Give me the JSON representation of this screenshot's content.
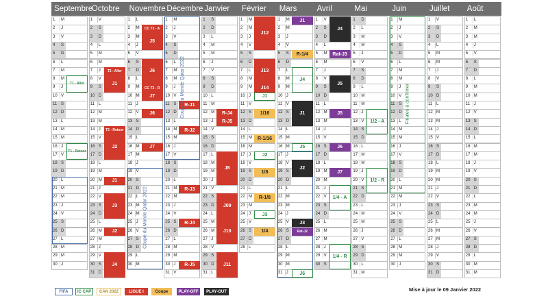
{
  "months": [
    {
      "name": "Septembre",
      "days": 30,
      "start": 3
    },
    {
      "name": "Octobre",
      "days": 31,
      "start": 5
    },
    {
      "name": "Novembre",
      "days": 30,
      "start": 1
    },
    {
      "name": "Décembre",
      "days": 31,
      "start": 3
    },
    {
      "name": "Janvier",
      "days": 31,
      "start": 6
    },
    {
      "name": "Février",
      "days": 28,
      "start": 2
    },
    {
      "name": "Mars",
      "days": 31,
      "start": 2
    },
    {
      "name": "Avril",
      "days": 30,
      "start": 5
    },
    {
      "name": "Mai",
      "days": 31,
      "start": 0
    },
    {
      "name": "Juin",
      "days": 30,
      "start": 3
    },
    {
      "name": "Juillet",
      "days": 31,
      "start": 5
    },
    {
      "name": "Août",
      "days": 31,
      "start": 1
    }
  ],
  "day_letters": [
    "D",
    "L",
    "M",
    "M",
    "J",
    "V",
    "S"
  ],
  "events": [
    {
      "m": 0,
      "from": 8,
      "to": 9,
      "type": "iccap",
      "label": "T1 - Aller",
      "small": true
    },
    {
      "m": 0,
      "from": 16,
      "to": 17,
      "type": "iccap",
      "label": "T1 - Retour",
      "small": true
    },
    {
      "m": 0,
      "from": 20,
      "to": 27,
      "type": "fifa",
      "label": ""
    },
    {
      "m": 1,
      "from": 7,
      "to": 7,
      "type": "ligue1",
      "label": "T2 - Aller",
      "small": true
    },
    {
      "m": 1,
      "from": 8,
      "to": 9,
      "type": "ligue1",
      "label": "J1"
    },
    {
      "m": 1,
      "from": 14,
      "to": 14,
      "type": "ligue1",
      "label": "T2 - Retour",
      "small": true
    },
    {
      "m": 1,
      "from": 15,
      "to": 17,
      "type": "ligue1",
      "label": "J2"
    },
    {
      "m": 1,
      "from": 20,
      "to": 20,
      "type": "ligue1",
      "label": "J1"
    },
    {
      "m": 1,
      "from": 22,
      "to": 24,
      "type": "ligue1",
      "label": "J3"
    },
    {
      "m": 1,
      "from": 26,
      "to": 26,
      "type": "ligue1",
      "label": "J2"
    },
    {
      "m": 1,
      "from": 29,
      "to": 31,
      "type": "ligue1",
      "label": "J4"
    },
    {
      "m": 2,
      "from": 2,
      "to": 2,
      "type": "ligue1",
      "label": "CC T2 - A",
      "small": true
    },
    {
      "m": 2,
      "from": 3,
      "to": 4,
      "type": "ligue1",
      "label": "J5"
    },
    {
      "m": 2,
      "from": 6,
      "to": 8,
      "type": "ligue1",
      "label": "J6"
    },
    {
      "m": 2,
      "from": 9,
      "to": 9,
      "type": "ligue1",
      "label": "CC T2 - R",
      "small": true
    },
    {
      "m": 2,
      "from": 10,
      "to": 10,
      "type": "ligue1",
      "label": "J7"
    },
    {
      "m": 2,
      "from": 12,
      "to": 12,
      "type": "ligue1",
      "label": "J6"
    },
    {
      "m": 2,
      "from": 16,
      "to": 16,
      "type": "ligue1",
      "label": "J7"
    },
    {
      "m": 2,
      "from": 19,
      "to": 30,
      "type": "fifa",
      "label": ""
    },
    {
      "m": 3,
      "from": 1,
      "to": 17,
      "type": "fifa",
      "label": ""
    },
    {
      "m": 3,
      "from": 11,
      "to": 11,
      "type": "ligue1",
      "label": "R-J1"
    },
    {
      "m": 3,
      "from": 14,
      "to": 14,
      "type": "ligue1",
      "label": "R-J2"
    },
    {
      "m": 3,
      "from": 21,
      "to": 21,
      "type": "ligue1",
      "label": "R-J3"
    },
    {
      "m": 3,
      "from": 25,
      "to": 25,
      "type": "ligue1",
      "label": "R-J4"
    },
    {
      "m": 3,
      "from": 30,
      "to": 30,
      "type": "ligue1",
      "label": "R-J5"
    },
    {
      "m": 4,
      "from": 12,
      "to": 12,
      "type": "ligue1",
      "label": "R-J4"
    },
    {
      "m": 4,
      "from": 13,
      "to": 13,
      "type": "ligue1",
      "label": "R-J5"
    },
    {
      "m": 4,
      "from": 17,
      "to": 20,
      "type": "ligue1",
      "label": "J8"
    },
    {
      "m": 4,
      "from": 22,
      "to": 24,
      "type": "ligue1",
      "label": "J09"
    },
    {
      "m": 4,
      "from": 25,
      "to": 27,
      "type": "ligue1",
      "label": "J10"
    },
    {
      "m": 4,
      "from": 29,
      "to": 31,
      "type": "ligue1",
      "label": "J11"
    },
    {
      "m": 5,
      "from": 1,
      "to": 4,
      "type": "ligue1",
      "label": "J12"
    },
    {
      "m": 5,
      "from": 6,
      "to": 8,
      "type": "ligue1",
      "label": "J13"
    },
    {
      "m": 5,
      "from": 10,
      "to": 10,
      "type": "iccap",
      "label": "J1"
    },
    {
      "m": 5,
      "from": 9,
      "to": 9,
      "type": "ligue1",
      "label": "J14"
    },
    {
      "m": 5,
      "from": 12,
      "to": 12,
      "type": "coupe",
      "label": "1/16"
    },
    {
      "m": 5,
      "from": 15,
      "to": 15,
      "type": "coupe",
      "label": "R-1/16"
    },
    {
      "m": 5,
      "from": 17,
      "to": 17,
      "type": "iccap",
      "label": "J2"
    },
    {
      "m": 5,
      "from": 19,
      "to": 19,
      "type": "coupe",
      "label": "1/8"
    },
    {
      "m": 5,
      "from": 22,
      "to": 22,
      "type": "coupe",
      "label": "R-1/8"
    },
    {
      "m": 5,
      "from": 24,
      "to": 24,
      "type": "iccap",
      "label": "J3"
    },
    {
      "m": 5,
      "from": 26,
      "to": 26,
      "type": "coupe",
      "label": "1/4"
    },
    {
      "m": 6,
      "from": 1,
      "to": 1,
      "type": "playoff",
      "label": "J1"
    },
    {
      "m": 6,
      "from": 5,
      "to": 5,
      "type": "coupe",
      "label": "R-1/4"
    },
    {
      "m": 6,
      "from": 7,
      "to": 9,
      "type": "iccap",
      "label": "J4"
    },
    {
      "m": 6,
      "from": 11,
      "to": 13,
      "type": "playout",
      "label": "J1"
    },
    {
      "m": 6,
      "from": 16,
      "to": 16,
      "type": "iccap",
      "label": "J5"
    },
    {
      "m": 6,
      "from": 17,
      "to": 31,
      "type": "fifa",
      "label": ""
    },
    {
      "m": 6,
      "from": 18,
      "to": 19,
      "type": "playout",
      "label": "J2"
    },
    {
      "m": 6,
      "from": 25,
      "to": 25,
      "type": "playout",
      "label": "J3"
    },
    {
      "m": 6,
      "from": 26,
      "to": 26,
      "type": "playoff",
      "label": "Rat-J2",
      "small": true
    },
    {
      "m": 6,
      "from": 31,
      "to": 31,
      "type": "iccap",
      "label": "J6"
    },
    {
      "m": 7,
      "from": 1,
      "to": 2,
      "type": "iccap",
      "label": "J6"
    },
    {
      "m": 7,
      "from": 1,
      "to": 3,
      "type": "playout",
      "label": "J4"
    },
    {
      "m": 7,
      "from": 5,
      "to": 5,
      "type": "playoff",
      "label": "Rat-J3"
    },
    {
      "m": 7,
      "from": 8,
      "to": 9,
      "type": "playoff",
      "label": "J4"
    },
    {
      "m": 7,
      "from": 8,
      "to": 9,
      "type": "playout",
      "label": "J5"
    },
    {
      "m": 7,
      "from": 12,
      "to": 12,
      "type": "playoff",
      "label": "J5"
    },
    {
      "m": 7,
      "from": 16,
      "to": 16,
      "type": "playoff",
      "label": "J6"
    },
    {
      "m": 7,
      "from": 19,
      "to": 19,
      "type": "playoff",
      "label": "J7"
    },
    {
      "m": 7,
      "from": 21,
      "to": 23,
      "type": "iccap",
      "label": "1/4 - A"
    },
    {
      "m": 7,
      "from": 28,
      "to": 30,
      "type": "iccap",
      "label": "1/4 - R"
    },
    {
      "m": 8,
      "from": 12,
      "to": 14,
      "type": "iccap",
      "label": "1/2 - A"
    },
    {
      "m": 8,
      "from": 19,
      "to": 21,
      "type": "iccap",
      "label": "1/2 - R"
    },
    {
      "m": 9,
      "from": 1,
      "to": 21,
      "type": "iccap",
      "label": ""
    }
  ],
  "vertical_labels": [
    {
      "m": 3,
      "from": 1,
      "to": 17,
      "text": "Coupe du Monde Qatar 2022",
      "color": "#4a6fa5"
    },
    {
      "m": 2,
      "from": 19,
      "to": 30,
      "text": "Coupe du Monde Qatar 2022",
      "color": "#4a6fa5"
    },
    {
      "m": 9,
      "from": 1,
      "to": 21,
      "text": "Finales à confirmer",
      "color": "#2e8b46"
    }
  ],
  "legend": [
    {
      "label": "FIFA",
      "type": "fifa"
    },
    {
      "label": "IC CAP",
      "type": "iccap"
    },
    {
      "label": "CAN 2022",
      "type": "can"
    },
    {
      "label": "LIGUE I",
      "type": "ligue1"
    },
    {
      "label": "Coupe",
      "type": "coupe"
    },
    {
      "label": "PLAY-OFF",
      "type": "playoff"
    },
    {
      "label": "PLAY-OUT",
      "type": "playout"
    }
  ],
  "update_note": "Mise à jour le 09 Janvier 2022",
  "colors": {
    "header": "#6f6f6f",
    "ligue1": "#d0392b",
    "coupe": "#f2bd56",
    "playoff": "#7d3c98",
    "playout": "#2b2b2b",
    "iccap": "#2e8b46",
    "fifa": "#4a6fa5",
    "can": "#e8c46a",
    "weekend": "#d6d6d6"
  }
}
